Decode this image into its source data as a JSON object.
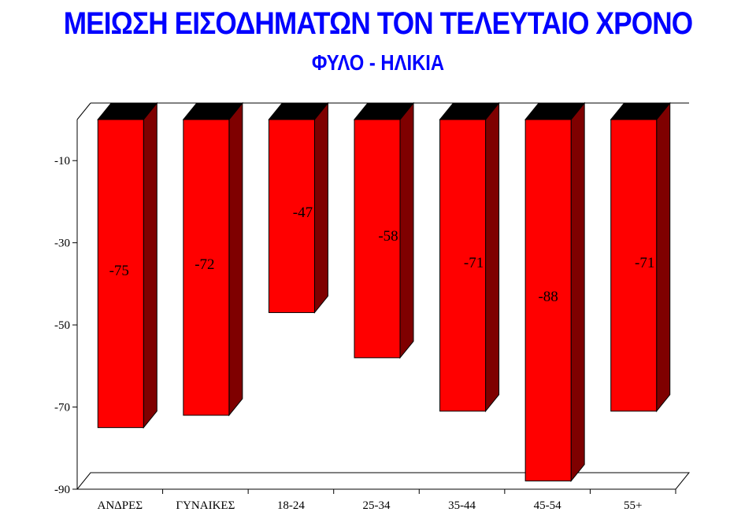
{
  "title": "ΜΕΙΩΣΗ ΕΙΣΟΔΗΜΑΤΩΝ ΤΟΝ ΤΕΛΕΥΤΑΙΟ ΧΡΟΝΟ",
  "subtitle": "ΦΥΛΟ - ΗΛΙΚΙΑ",
  "colors": {
    "title": "#0000ff",
    "bar_front": "#ff0000",
    "bar_side": "#7f0000",
    "bar_top": "#000000"
  },
  "chart_data": {
    "type": "bar",
    "title": "ΜΕΙΩΣΗ ΕΙΣΟΔΗΜΑΤΩΝ ΤΟΝ ΤΕΛΕΥΤΑΙΟ ΧΡΟΝΟ",
    "subtitle": "ΦΥΛΟ - ΗΛΙΚΙΑ",
    "categories": [
      "ΑΝΔΡΕΣ",
      "ΓΥΝΑΙΚΕΣ",
      "18-24",
      "25-34",
      "35-44",
      "45-54",
      "55+"
    ],
    "values": [
      -75,
      -72,
      -47,
      -58,
      -71,
      -88,
      -71
    ],
    "data_labels": [
      "-75",
      "-72",
      "-47",
      "-58",
      "-71",
      "-88",
      "-71"
    ],
    "yticks": [
      -10,
      -30,
      -50,
      -70,
      -90
    ],
    "ytick_labels": [
      "-10",
      "-30",
      "-50",
      "-70",
      "-90"
    ],
    "ylim": [
      -90,
      0
    ],
    "xlabel": "",
    "ylabel": "",
    "grid": false,
    "style": "3d"
  }
}
